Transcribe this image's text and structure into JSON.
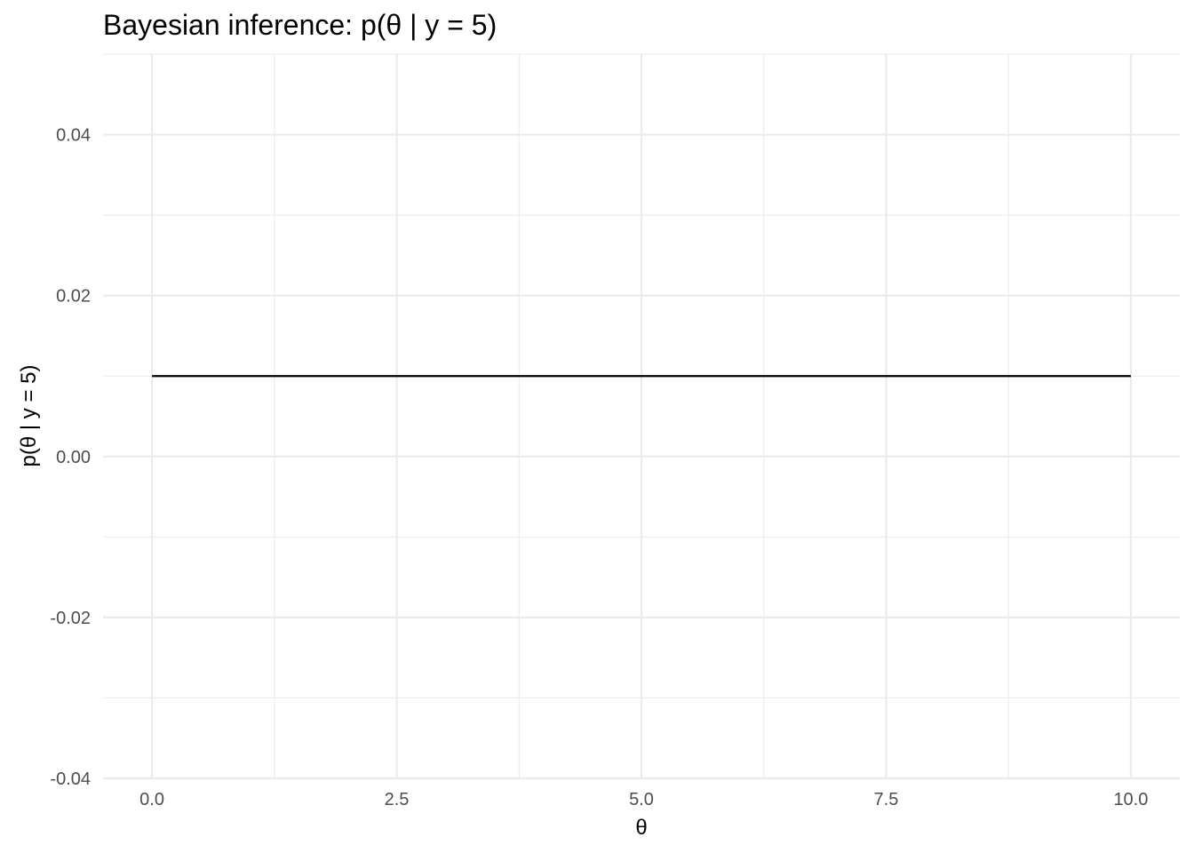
{
  "chart_data": {
    "type": "line",
    "title": "Bayesian inference: p(θ | y = 5)",
    "xlabel": "θ",
    "ylabel": "p(θ | y = 5)",
    "xlim": [
      -0.5,
      10.5
    ],
    "ylim": [
      -0.04,
      0.05
    ],
    "x_ticks": [
      0,
      2.5,
      5,
      7.5,
      10
    ],
    "x_tick_labels": [
      "0.0",
      "2.5",
      "5.0",
      "7.5",
      "10.0"
    ],
    "x_minor_ticks": [
      1.25,
      3.75,
      6.25,
      8.75
    ],
    "y_ticks": [
      -0.04,
      -0.02,
      0,
      0.02,
      0.04
    ],
    "y_tick_labels": [
      "-0.04",
      "-0.02",
      "0.00",
      "0.02",
      "0.04"
    ],
    "y_minor_ticks": [
      -0.03,
      -0.01,
      0.01,
      0.03,
      0.05
    ],
    "grid": true,
    "line_color": "#000000",
    "grid_color": "#ebebeb",
    "series": [
      {
        "x": [
          0,
          10
        ],
        "y": [
          0.01,
          0.01
        ]
      }
    ]
  }
}
